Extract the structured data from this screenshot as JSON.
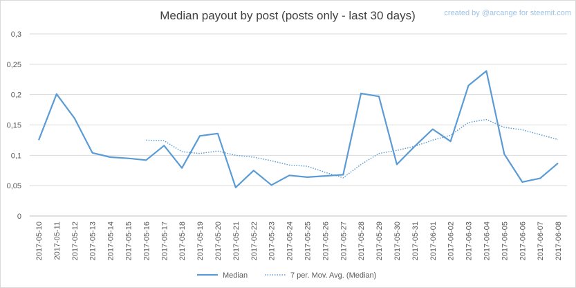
{
  "watermark": "created by @arcange for steemit.com",
  "chart_data": {
    "type": "line",
    "title": "Median payout by post (posts only - last 30 days)",
    "xlabel": "",
    "ylabel": "",
    "ylim": [
      0,
      0.3
    ],
    "yticks": [
      "0",
      "0,05",
      "0,1",
      "0,15",
      "0,2",
      "0,25",
      "0,3"
    ],
    "ytick_values": [
      0,
      0.05,
      0.1,
      0.15,
      0.2,
      0.25,
      0.3
    ],
    "grid": true,
    "legend_position": "bottom",
    "categories": [
      "2017-05-10",
      "2017-05-11",
      "2017-05-12",
      "2017-05-13",
      "2017-05-14",
      "2017-05-15",
      "2017-05-16",
      "2017-05-17",
      "2017-05-18",
      "2017-05-19",
      "2017-05-20",
      "2017-05-21",
      "2017-05-22",
      "2017-05-23",
      "2017-05-24",
      "2017-05-25",
      "2017-05-26",
      "2017-05-27",
      "2017-05-28",
      "2017-05-29",
      "2017-05-30",
      "2017-05-31",
      "2017-06-01",
      "2017-06-02",
      "2017-06-03",
      "2017-06-04",
      "2017-06-05",
      "2017-06-06",
      "2017-06-07",
      "2017-06-08"
    ],
    "series": [
      {
        "name": "Median",
        "style": "solid",
        "color": "#5b9bd5",
        "values": [
          0.125,
          0.201,
          0.161,
          0.104,
          0.097,
          0.095,
          0.092,
          0.116,
          0.079,
          0.132,
          0.136,
          0.047,
          0.075,
          0.051,
          0.067,
          0.064,
          0.066,
          0.068,
          0.202,
          0.197,
          0.085,
          0.115,
          0.143,
          0.123,
          0.215,
          0.239,
          0.102,
          0.056,
          0.062,
          0.087
        ]
      },
      {
        "name": "7 per. Mov. Avg. (Median)",
        "style": "dotted",
        "color": "#5b9bd5",
        "values": [
          null,
          null,
          null,
          null,
          null,
          null,
          0.125,
          0.124,
          0.106,
          0.103,
          0.107,
          0.1,
          0.097,
          0.091,
          0.084,
          0.082,
          0.072,
          0.063,
          0.085,
          0.103,
          0.108,
          0.115,
          0.125,
          0.133,
          0.154,
          0.159,
          0.146,
          0.142,
          0.134,
          0.126
        ]
      }
    ]
  }
}
